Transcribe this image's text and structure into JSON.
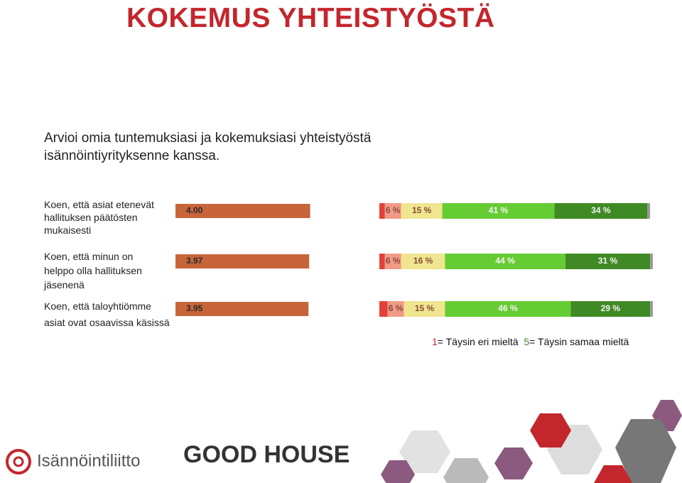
{
  "title": "KOKEMUS YHTEISTYÖSTÄ",
  "subtitle": "Arvioi omia tuntemuksiasi ja kokemuksiasi yhteistyöstä isännöintiyrityksenne kanssa.",
  "chart_data": [
    {
      "type": "bar",
      "orientation": "horizontal",
      "color": "#c8643a",
      "categories": [
        "Koen, että asiat etenevät hallituksen päätösten mukaisesti",
        "Koen, että minun on helppo olla hallituksen jäsenenä",
        "Koen, että taloyhtiömme asiat ovat osaavissa käsissä"
      ],
      "values": [
        4.0,
        3.97,
        3.95
      ],
      "value_labels": [
        "4.00",
        "3.97",
        "3.95"
      ],
      "xlim": [
        0,
        5
      ]
    },
    {
      "type": "stacked_bar",
      "orientation": "horizontal",
      "xlim": [
        0,
        100
      ],
      "series": [
        {
          "color": "#e2413a",
          "values": [
            2,
            2,
            3
          ],
          "value_labels": [
            null,
            null,
            null
          ]
        },
        {
          "color": "#f19a88",
          "values": [
            6,
            6,
            6
          ],
          "value_labels": [
            "6 %",
            "6 %",
            "6 %"
          ]
        },
        {
          "color": "#efe68f",
          "values": [
            15,
            16,
            15
          ],
          "value_labels": [
            "15 %",
            "16 %",
            "15 %"
          ]
        },
        {
          "color": "#66cc33",
          "values": [
            41,
            44,
            46
          ],
          "value_labels": [
            "41 %",
            "44 %",
            "46 %"
          ]
        },
        {
          "color": "#3f8a24",
          "values": [
            34,
            31,
            29
          ],
          "value_labels": [
            "34 %",
            "31 %",
            "29 %"
          ]
        },
        {
          "color": "#9a9a9a",
          "values": [
            1,
            1,
            1
          ],
          "value_labels": [
            null,
            null,
            null
          ]
        }
      ]
    }
  ],
  "scale_note": {
    "low_key": "1",
    "low_text": "= Täysin eri mieltä",
    "high_key": "5",
    "high_text": "= Täysin samaa mieltä"
  },
  "logos": {
    "left": "Isännöintiliitto",
    "right": "GOOD HOUSE"
  }
}
